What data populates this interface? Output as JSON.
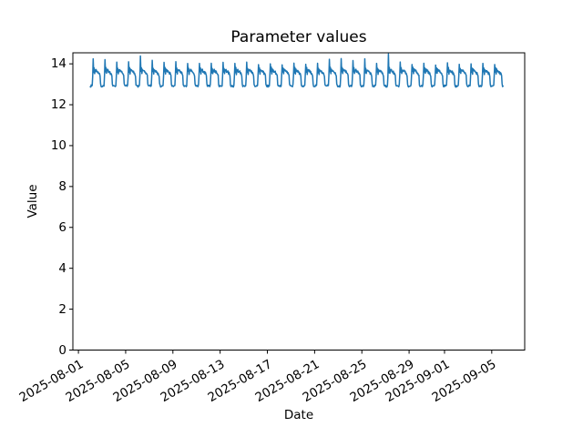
{
  "chart_data": {
    "type": "line",
    "title": "Parameter values",
    "xlabel": "Date",
    "ylabel": "Value",
    "grid": false,
    "legend": false,
    "line_color": "#1f77b4",
    "background_color": "#ffffff",
    "axis_color": "#000000",
    "ylim": [
      0,
      14.54
    ],
    "yticks": [
      0,
      2,
      4,
      6,
      8,
      10,
      12,
      14
    ],
    "x_reference_date": "2025-08-01",
    "x_range_days": [
      -0.47,
      37.79
    ],
    "xticks": [
      {
        "label": "2025-08-01",
        "day_offset": 0
      },
      {
        "label": "2025-08-05",
        "day_offset": 4
      },
      {
        "label": "2025-08-09",
        "day_offset": 8
      },
      {
        "label": "2025-08-13",
        "day_offset": 12
      },
      {
        "label": "2025-08-17",
        "day_offset": 16
      },
      {
        "label": "2025-08-21",
        "day_offset": 20
      },
      {
        "label": "2025-08-25",
        "day_offset": 24
      },
      {
        "label": "2025-08-29",
        "day_offset": 28
      },
      {
        "label": "2025-09-01",
        "day_offset": 31
      },
      {
        "label": "2025-09-05",
        "day_offset": 35
      }
    ],
    "series": {
      "name": "parameter-values",
      "start_date": "2025-08-02",
      "start_day_offset": 1,
      "days": 35,
      "points_per_day": 24,
      "peak_hour": 6,
      "hourly_profile": [
        12.92,
        12.9,
        12.93,
        12.9,
        12.95,
        13.4,
        14.0,
        13.6,
        13.8,
        13.5,
        13.72,
        13.65,
        13.7,
        13.62,
        13.66,
        13.58,
        13.62,
        13.52,
        13.56,
        13.48,
        13.42,
        13.0,
        12.92,
        12.9
      ],
      "daily_peaks": [
        14.25,
        14.2,
        14.05,
        14.1,
        14.4,
        14.15,
        14.05,
        14.1,
        14.0,
        14.05,
        14.0,
        14.08,
        14.0,
        14.05,
        13.98,
        14.02,
        13.98,
        14.0,
        13.97,
        14.0,
        14.2,
        14.28,
        14.15,
        14.22,
        14.05,
        14.45,
        14.1,
        14.0,
        14.05,
        13.98,
        14.02,
        13.98,
        14.0,
        14.03,
        13.98
      ],
      "noise_amplitude": 0.08,
      "noise_seed": 7
    }
  }
}
